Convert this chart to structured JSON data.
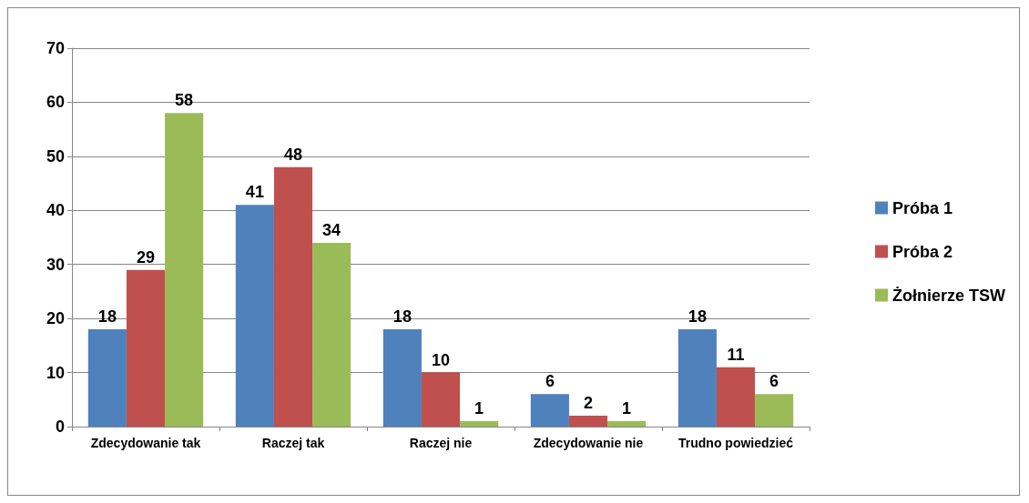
{
  "chart_data": {
    "type": "bar",
    "categories": [
      "Zdecydowanie tak",
      "Raczej tak",
      "Raczej nie",
      "Zdecydowanie nie",
      "Trudno powiedzieć"
    ],
    "series": [
      {
        "name": "Próba 1",
        "color": "#4f81bd",
        "values": [
          18,
          41,
          18,
          6,
          18
        ]
      },
      {
        "name": "Próba 2",
        "color": "#c0504d",
        "values": [
          29,
          48,
          10,
          2,
          11
        ]
      },
      {
        "name": "Żołnierze TSW",
        "color": "#9bbb59",
        "values": [
          58,
          34,
          1,
          1,
          6
        ]
      }
    ],
    "ylim": [
      0,
      70
    ],
    "yticks": [
      0,
      10,
      20,
      30,
      40,
      50,
      60,
      70
    ],
    "grid": "y",
    "legend": "right",
    "data_labels": true
  }
}
